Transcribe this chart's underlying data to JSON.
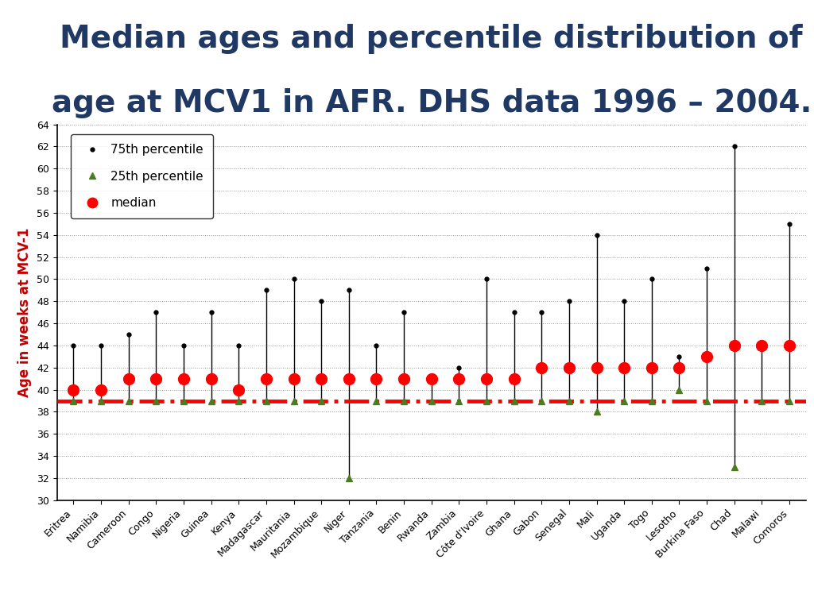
{
  "title_line1": "Median ages and percentile distribution of",
  "title_line2": "age at MCV1 in AFR. DHS data 1996 – 2004.",
  "ylabel": "Age in weeks at MCV-1",
  "countries": [
    "Eritrea",
    "Namibia",
    "Cameroon",
    "Congo",
    "Nigeria",
    "Guinea",
    "Kenya",
    "Madagascar",
    "Mauritania",
    "Mozambique",
    "Niger",
    "Tanzania",
    "Benin",
    "Rwanda",
    "Zambia",
    "Côte d'Ivoire",
    "Ghana",
    "Gabon",
    "Senegal",
    "Mali",
    "Uganda",
    "Togo",
    "Lesotho",
    "Burkina Faso",
    "Chad",
    "Malawi",
    "Comoros"
  ],
  "p75": [
    44,
    44,
    45,
    47,
    44,
    47,
    44,
    49,
    50,
    48,
    49,
    44,
    47,
    41,
    42,
    50,
    47,
    47,
    48,
    54,
    48,
    50,
    43,
    51,
    62,
    44,
    55
  ],
  "median": [
    40,
    40,
    41,
    41,
    41,
    41,
    40,
    41,
    41,
    41,
    41,
    41,
    41,
    41,
    41,
    41,
    41,
    42,
    42,
    42,
    42,
    42,
    42,
    43,
    44,
    44,
    44
  ],
  "p25": [
    39,
    39,
    39,
    39,
    39,
    39,
    39,
    39,
    39,
    39,
    32,
    39,
    39,
    39,
    39,
    39,
    39,
    39,
    39,
    38,
    39,
    39,
    40,
    39,
    33,
    39,
    39
  ],
  "hline_y": 39,
  "ylim": [
    30,
    64
  ],
  "yticks": [
    30,
    32,
    34,
    36,
    38,
    40,
    42,
    44,
    46,
    48,
    50,
    52,
    54,
    56,
    58,
    60,
    62,
    64
  ],
  "title_color": "#1F3864",
  "title_fontsize": 28,
  "ylabel_color": "#c00000",
  "hline_color": "#ff0000",
  "median_color": "#ff0000",
  "p75_color": "#000000",
  "p25_color": "#4a7c20",
  "vline_color": "#000000",
  "background_color": "#ffffff",
  "grid_color": "#999999"
}
